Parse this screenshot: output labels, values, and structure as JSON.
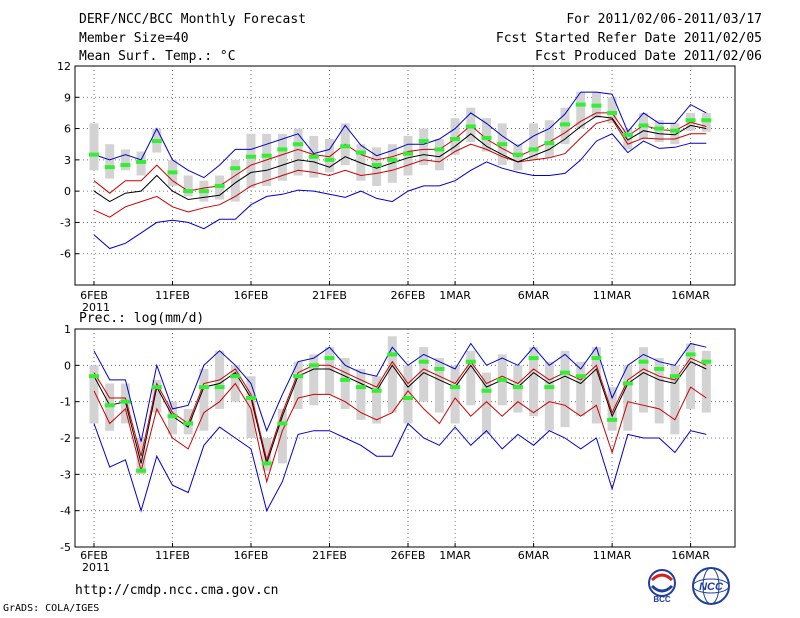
{
  "header": {
    "title": "DERF/NCC/BCC Monthly Forecast",
    "member_size": "Member Size=40",
    "variable": "Mean Surf. Temp.: °C",
    "period": "For 2011/02/06-2011/03/17",
    "refer_date": "Fcst Started Refer Date 2011/02/05",
    "produced_date": "Fcst Produced Date 2011/02/06"
  },
  "footer": {
    "url": "http://cmdp.ncc.cma.gov.cn",
    "grads": "GrADS: COLA/IGES",
    "logo_bcc": "BCC",
    "logo_ncc": "NCC"
  },
  "colors": {
    "envelope": "#0000cc",
    "spread": "#cc0000",
    "mean": "#000000",
    "box": "#d3d3d3",
    "median": "#33ee33"
  },
  "chart_data": [
    {
      "type": "line",
      "title": "Mean Surf. Temp.: °C",
      "ylabel": "°C",
      "ylim": [
        -9,
        12
      ],
      "yticks": [
        12,
        9,
        6,
        3,
        0,
        -3,
        -6
      ],
      "x_days": 40,
      "xtick_labels": [
        "6FEB",
        "11FEB",
        "16FEB",
        "21FEB",
        "26FEB",
        "1MAR",
        "6MAR",
        "11MAR",
        "16MAR"
      ],
      "xtick_days": [
        0,
        5,
        10,
        15,
        20,
        23,
        28,
        33,
        38
      ],
      "year_label": "2011",
      "series": [
        {
          "name": "max",
          "values": [
            -4.2,
            -5.5,
            -5.0,
            -4.0,
            -3.0,
            -2.8,
            -3.0,
            -3.6,
            -2.7,
            -2.7,
            -1.3,
            -0.5,
            -0.3,
            0.1,
            0.0,
            -0.3,
            -0.6,
            0.0,
            -0.7,
            -1.0,
            0.0,
            0.5,
            0.5,
            1.0,
            2.0,
            2.8,
            2.2,
            1.8,
            1.5,
            1.5,
            1.7,
            3.0,
            4.8,
            5.5,
            3.7,
            4.8,
            4.1,
            4.2,
            4.6,
            4.6
          ]
        },
        {
          "name": "p10",
          "values": [
            -1.8,
            -2.5,
            -1.5,
            -1.0,
            -0.5,
            -1.5,
            -2.0,
            -1.6,
            -1.3,
            -0.5,
            0.5,
            1.0,
            1.5,
            2.0,
            1.8,
            1.5,
            2.0,
            1.5,
            1.7,
            2.0,
            2.5,
            3.0,
            2.8,
            3.8,
            4.5,
            4.0,
            3.3,
            2.8,
            3.0,
            3.2,
            3.6,
            5.1,
            6.5,
            6.9,
            4.5,
            5.1,
            5.0,
            5.0,
            5.5,
            5.5
          ]
        },
        {
          "name": "mean",
          "values": [
            0.0,
            -1.0,
            -0.2,
            0.0,
            1.5,
            0.0,
            -0.8,
            -0.6,
            -0.4,
            0.8,
            1.8,
            2.0,
            2.5,
            3.0,
            2.8,
            2.3,
            3.3,
            2.7,
            2.2,
            2.7,
            3.2,
            3.5,
            3.3,
            4.3,
            5.5,
            4.3,
            3.5,
            2.8,
            3.4,
            4.0,
            5.0,
            6.2,
            7.2,
            7.0,
            4.9,
            5.8,
            5.5,
            5.4,
            6.3,
            6.0
          ]
        },
        {
          "name": "p90",
          "values": [
            1.0,
            -0.2,
            1.0,
            1.0,
            2.5,
            1.0,
            0.0,
            0.3,
            0.5,
            1.5,
            2.5,
            3.0,
            3.5,
            4.0,
            3.5,
            3.3,
            4.5,
            3.5,
            3.0,
            3.3,
            3.8,
            4.0,
            4.0,
            5.0,
            6.3,
            5.0,
            4.1,
            3.3,
            4.0,
            4.7,
            5.6,
            6.7,
            7.5,
            7.5,
            5.3,
            6.3,
            5.9,
            5.8,
            6.6,
            6.2
          ]
        },
        {
          "name": "min",
          "values": [
            3.5,
            3.0,
            3.5,
            3.0,
            6.0,
            3.0,
            2.0,
            1.3,
            2.5,
            4.0,
            4.0,
            4.5,
            5.0,
            5.5,
            3.6,
            4.0,
            6.3,
            4.4,
            3.4,
            3.9,
            4.5,
            4.5,
            5.0,
            6.0,
            7.5,
            6.5,
            5.3,
            4.3,
            5.3,
            6.0,
            7.4,
            9.5,
            9.5,
            9.3,
            5.7,
            7.5,
            6.5,
            6.5,
            8.3,
            7.5
          ]
        }
      ],
      "box": {
        "low": [
          2.0,
          1.2,
          2.0,
          1.5,
          3.7,
          0.5,
          -0.5,
          -1.0,
          -0.8,
          -1.0,
          0.3,
          0.5,
          1.0,
          1.5,
          1.3,
          1.8,
          2.5,
          1.0,
          0.5,
          0.8,
          1.5,
          2.5,
          2.0,
          3.5,
          4.7,
          3.8,
          2.5,
          2.0,
          3.0,
          3.2,
          4.5,
          6.0,
          7.0,
          6.5,
          4.0,
          5.0,
          4.7,
          4.5,
          5.8,
          5.7
        ],
        "high": [
          6.5,
          4.5,
          4.0,
          3.8,
          6.0,
          3.0,
          1.5,
          1.0,
          1.5,
          3.0,
          5.5,
          5.5,
          5.5,
          6.0,
          5.3,
          5.0,
          6.5,
          4.5,
          4.2,
          4.5,
          5.3,
          6.0,
          5.0,
          7.0,
          8.0,
          7.0,
          6.5,
          4.5,
          6.5,
          6.8,
          8.0,
          9.5,
          9.5,
          9.0,
          6.0,
          7.5,
          6.8,
          6.5,
          7.5,
          7.5
        ],
        "median": [
          3.5,
          2.3,
          2.5,
          2.8,
          4.8,
          1.8,
          0.0,
          0.0,
          0.5,
          2.2,
          3.3,
          3.4,
          4.0,
          4.5,
          3.3,
          3.0,
          4.3,
          3.7,
          2.5,
          3.0,
          3.6,
          4.8,
          4.0,
          5.0,
          6.2,
          5.1,
          4.5,
          3.5,
          4.0,
          4.6,
          6.4,
          8.3,
          8.2,
          7.5,
          5.4,
          6.3,
          6.0,
          5.8,
          6.8,
          6.8
        ]
      }
    },
    {
      "type": "line",
      "title": "Prec.: log(mm/d)",
      "ylabel": "log(mm/d)",
      "ylim": [
        -5,
        1
      ],
      "yticks": [
        1,
        0,
        -1,
        -2,
        -3,
        -4,
        -5
      ],
      "x_days": 40,
      "xtick_labels": [
        "6FEB",
        "11FEB",
        "16FEB",
        "21FEB",
        "26FEB",
        "1MAR",
        "6MAR",
        "11MAR",
        "16MAR"
      ],
      "xtick_days": [
        0,
        5,
        10,
        15,
        20,
        23,
        28,
        33,
        38
      ],
      "year_label": "2011",
      "series": [
        {
          "name": "min",
          "values": [
            -1.6,
            -2.8,
            -2.6,
            -4.0,
            -2.5,
            -3.3,
            -3.5,
            -2.2,
            -1.7,
            -2.0,
            -2.3,
            -4.0,
            -3.2,
            -1.9,
            -1.8,
            -1.8,
            -2.0,
            -2.2,
            -2.5,
            -2.5,
            -1.6,
            -2.0,
            -2.2,
            -1.7,
            -2.2,
            -1.8,
            -2.3,
            -1.9,
            -2.2,
            -1.8,
            -2.0,
            -2.3,
            -2.0,
            -3.4,
            -1.9,
            -2.0,
            -2.0,
            -2.4,
            -1.8,
            -1.9
          ]
        },
        {
          "name": "p10",
          "values": [
            -0.7,
            -1.6,
            -1.2,
            -2.9,
            -1.2,
            -2.0,
            -2.3,
            -1.3,
            -1.0,
            -0.5,
            -1.2,
            -3.2,
            -1.8,
            -0.9,
            -0.8,
            -0.8,
            -1.0,
            -1.3,
            -1.5,
            -1.3,
            -0.7,
            -1.2,
            -1.6,
            -0.9,
            -1.4,
            -1.0,
            -1.4,
            -1.0,
            -1.3,
            -1.0,
            -1.1,
            -1.4,
            -1.1,
            -2.4,
            -1.0,
            -1.1,
            -1.2,
            -1.5,
            -0.6,
            -0.9
          ]
        },
        {
          "name": "mean",
          "values": [
            -0.3,
            -1.1,
            -1.0,
            -2.7,
            -0.6,
            -1.4,
            -1.7,
            -0.6,
            -0.5,
            -0.2,
            -0.9,
            -2.7,
            -1.4,
            -0.3,
            -0.1,
            -0.1,
            -0.3,
            -0.5,
            -0.7,
            0.0,
            -0.6,
            -0.2,
            -0.4,
            -0.6,
            0.0,
            -0.6,
            -0.4,
            -0.6,
            -0.2,
            -0.5,
            -0.3,
            -0.5,
            -0.1,
            -1.4,
            -0.5,
            -0.2,
            -0.4,
            -0.5,
            0.1,
            -0.1
          ]
        },
        {
          "name": "p90",
          "values": [
            -0.2,
            -0.9,
            -0.9,
            -2.5,
            -0.5,
            -1.3,
            -1.6,
            -0.5,
            -0.4,
            -0.1,
            -0.8,
            -2.6,
            -1.3,
            -0.2,
            0.0,
            0.0,
            -0.2,
            -0.4,
            -0.6,
            0.1,
            -0.5,
            -0.1,
            -0.3,
            -0.5,
            0.1,
            -0.5,
            -0.3,
            -0.5,
            -0.1,
            -0.4,
            -0.2,
            -0.4,
            0.0,
            -1.3,
            -0.4,
            -0.1,
            -0.3,
            -0.4,
            0.2,
            0.0
          ]
        },
        {
          "name": "max",
          "values": [
            0.4,
            -0.4,
            -0.4,
            -2.1,
            0.0,
            -1.2,
            -1.1,
            0.0,
            0.4,
            0.0,
            -0.5,
            -1.8,
            -0.8,
            0.1,
            0.2,
            0.5,
            0.0,
            -0.2,
            -0.3,
            0.5,
            0.0,
            0.3,
            0.1,
            -0.1,
            0.6,
            0.0,
            0.2,
            0.0,
            0.5,
            0.0,
            0.3,
            -0.1,
            0.5,
            -0.9,
            0.0,
            0.3,
            0.1,
            0.0,
            0.6,
            0.5
          ]
        }
      ],
      "box": {
        "low": [
          -1.6,
          -1.8,
          -1.6,
          -3.0,
          -1.3,
          -1.9,
          -1.9,
          -1.8,
          -1.2,
          -1.0,
          -2.0,
          -2.9,
          -2.7,
          -1.2,
          -1.1,
          -0.8,
          -1.2,
          -1.5,
          -1.6,
          -1.3,
          -1.6,
          -1.0,
          -1.3,
          -1.6,
          -1.1,
          -1.9,
          -1.1,
          -1.3,
          -1.4,
          -1.8,
          -1.7,
          -1.4,
          -1.6,
          -1.8,
          -1.8,
          -1.3,
          -1.6,
          -1.9,
          -1.2,
          -1.3
        ],
        "high": [
          0.0,
          -0.5,
          -0.5,
          -2.0,
          -0.4,
          -1.0,
          -1.2,
          -0.1,
          0.4,
          0.0,
          -0.3,
          -2.0,
          -1.2,
          0.1,
          0.3,
          0.5,
          0.2,
          -0.1,
          -0.3,
          0.8,
          0.0,
          0.5,
          0.2,
          0.0,
          0.4,
          -0.2,
          0.3,
          0.0,
          0.5,
          0.1,
          0.4,
          0.1,
          0.5,
          -0.6,
          0.0,
          0.5,
          0.2,
          0.0,
          0.6,
          0.4
        ],
        "median": [
          -0.3,
          -1.1,
          -1.0,
          -2.9,
          -0.6,
          -1.4,
          -1.6,
          -0.6,
          -0.6,
          -0.3,
          -0.9,
          -2.7,
          -1.6,
          -0.3,
          0.0,
          0.2,
          -0.4,
          -0.6,
          -0.7,
          0.3,
          -0.9,
          0.1,
          -0.1,
          -0.6,
          0.1,
          -0.7,
          -0.4,
          -0.6,
          0.2,
          -0.6,
          -0.2,
          -0.3,
          0.2,
          -1.5,
          -0.5,
          0.1,
          -0.1,
          -0.3,
          0.3,
          0.1
        ]
      }
    }
  ]
}
